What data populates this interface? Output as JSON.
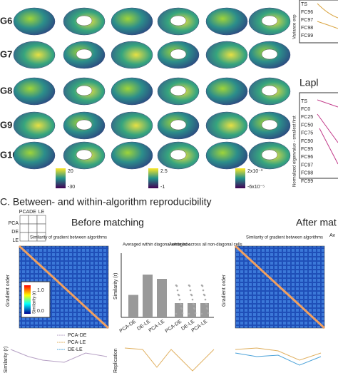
{
  "panel_b": {
    "rows": [
      "G6",
      "G7",
      "G8",
      "G9",
      "G10"
    ],
    "colorbars": [
      {
        "max": "20",
        "min": "-30"
      },
      {
        "max": "2.5",
        "min": "-1"
      },
      {
        "max": "2x10⁻³",
        "min": "-6x10⁻⁵"
      }
    ]
  },
  "side": {
    "top_axis": "Variance exp",
    "top_labels": [
      "TS",
      "FC96",
      "FC97",
      "FC98",
      "FC99"
    ],
    "title": "Lapl",
    "axis": "Normalized eigenvalue - smallest first",
    "labels": [
      "TS",
      "FC0",
      "FC25",
      "FC50",
      "FC75",
      "FC90",
      "FC95",
      "FC96",
      "FC97",
      "FC98",
      "FC99"
    ]
  },
  "panel_c": {
    "title": "C.  Between- and within-algorithm reproducibility",
    "matrix_labels": [
      "PCA",
      "DE",
      "LE"
    ],
    "before": "Before matching",
    "after": "After mat",
    "heatmap_title": "Similarity of gradient between algorithms",
    "y_axis": "Gradient order",
    "cbar_label": "Similarity (r)",
    "cbar_ticks": [
      "1.0",
      "0.0"
    ],
    "bar_title": "Averaged within diagonal white box",
    "scatter_title": "Averaged across all non-diagonal cells",
    "bar_axis": "Similarity (r)",
    "bars": {
      "categories": [
        "PCA-DE",
        "DE-LE",
        "PCA-LE"
      ],
      "values": [
        0.42,
        0.8,
        0.72
      ],
      "ylim": [
        0,
        1.2
      ]
    },
    "scatter_categories": [
      "PCA-DE",
      "DE-LE",
      "PCA-LE"
    ],
    "legend": [
      "PCA-DE",
      "PCA-LE",
      "DE-LE"
    ],
    "bottom_axis": "Similarity (r)",
    "replication": "Replication",
    "after_short": "Av"
  }
}
